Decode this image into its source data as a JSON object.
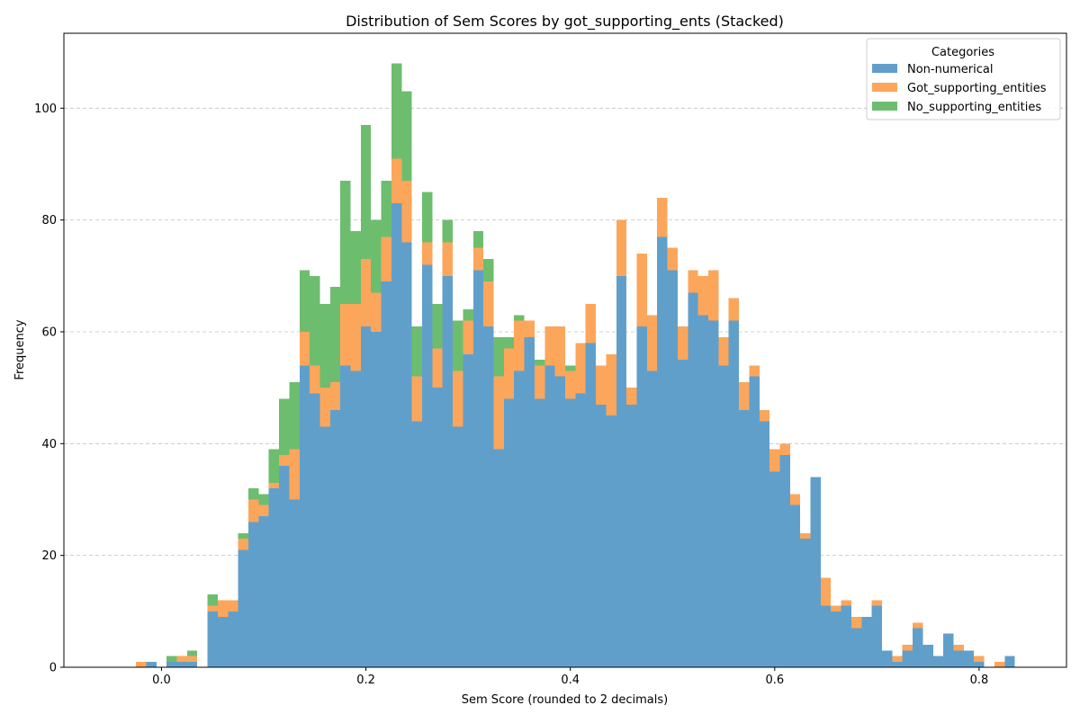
{
  "chart_data": {
    "type": "bar",
    "stacked": true,
    "title": "Distribution of Sem Scores by got_supporting_ents (Stacked)",
    "xlabel": "Sem Score (rounded to 2 decimals)",
    "ylabel": "Frequency",
    "xlim": [
      -0.0955,
      0.8855
    ],
    "ylim": [
      0,
      113.4
    ],
    "xticks": [
      0.0,
      0.2,
      0.4,
      0.6,
      0.8
    ],
    "xtick_labels": [
      "0.0",
      "0.2",
      "0.4",
      "0.6",
      "0.8"
    ],
    "yticks": [
      0,
      20,
      40,
      60,
      80,
      100
    ],
    "ytick_labels": [
      "0",
      "20",
      "40",
      "60",
      "80",
      "100"
    ],
    "grid": "y-dashed",
    "bin_width": 0.01,
    "legend": {
      "title": "Categories",
      "placement": "top-right"
    },
    "x": [
      -0.02,
      -0.01,
      0.0,
      0.01,
      0.02,
      0.03,
      0.04,
      0.05,
      0.06,
      0.07,
      0.08,
      0.09,
      0.1,
      0.11,
      0.12,
      0.13,
      0.14,
      0.15,
      0.16,
      0.17,
      0.18,
      0.19,
      0.2,
      0.21,
      0.22,
      0.23,
      0.24,
      0.25,
      0.26,
      0.27,
      0.28,
      0.29,
      0.3,
      0.31,
      0.32,
      0.33,
      0.34,
      0.35,
      0.36,
      0.37,
      0.38,
      0.39,
      0.4,
      0.41,
      0.42,
      0.43,
      0.44,
      0.45,
      0.46,
      0.47,
      0.48,
      0.49,
      0.5,
      0.51,
      0.52,
      0.53,
      0.54,
      0.55,
      0.56,
      0.57,
      0.58,
      0.59,
      0.6,
      0.61,
      0.62,
      0.63,
      0.64,
      0.65,
      0.66,
      0.67,
      0.68,
      0.69,
      0.7,
      0.71,
      0.72,
      0.73,
      0.74,
      0.75,
      0.76,
      0.77,
      0.78,
      0.79,
      0.8,
      0.81,
      0.82,
      0.83
    ],
    "series": [
      {
        "name": "Non-numerical",
        "color": "#619fcb",
        "values": [
          0,
          1,
          0,
          1,
          1,
          1,
          0,
          10,
          9,
          10,
          21,
          26,
          27,
          32,
          36,
          30,
          54,
          49,
          43,
          46,
          54,
          53,
          61,
          60,
          69,
          83,
          76,
          44,
          72,
          50,
          70,
          43,
          56,
          71,
          61,
          39,
          48,
          53,
          59,
          48,
          54,
          52,
          48,
          49,
          58,
          47,
          45,
          70,
          47,
          61,
          53,
          77,
          71,
          55,
          67,
          63,
          62,
          54,
          62,
          46,
          52,
          44,
          35,
          38,
          29,
          23,
          34,
          11,
          10,
          11,
          7,
          9,
          11,
          3,
          1,
          3,
          7,
          4,
          2,
          6,
          3,
          3,
          1,
          0,
          0,
          2
        ]
      },
      {
        "name": "Got_supporting_entities",
        "color": "#fca65b",
        "values": [
          1,
          0,
          0,
          0,
          1,
          1,
          0,
          1,
          3,
          2,
          2,
          4,
          2,
          1,
          2,
          9,
          6,
          5,
          7,
          5,
          11,
          12,
          12,
          7,
          8,
          8,
          11,
          8,
          4,
          7,
          6,
          10,
          6,
          4,
          8,
          13,
          9,
          9,
          3,
          6,
          7,
          9,
          5,
          9,
          7,
          7,
          11,
          10,
          3,
          13,
          10,
          7,
          4,
          6,
          4,
          7,
          9,
          5,
          4,
          5,
          2,
          2,
          4,
          2,
          2,
          1,
          0,
          5,
          1,
          1,
          2,
          0,
          1,
          0,
          1,
          1,
          1,
          0,
          0,
          0,
          1,
          0,
          1,
          0,
          1,
          0
        ]
      },
      {
        "name": "No_supporting_entities",
        "color": "#6dbd6f",
        "values": [
          0,
          0,
          0,
          1,
          0,
          1,
          0,
          2,
          0,
          0,
          1,
          2,
          2,
          6,
          10,
          12,
          11,
          16,
          15,
          17,
          22,
          13,
          24,
          13,
          10,
          17,
          16,
          9,
          9,
          8,
          4,
          9,
          2,
          3,
          4,
          7,
          2,
          1,
          0,
          1,
          0,
          0,
          1,
          0,
          0,
          0,
          0,
          0,
          0,
          0,
          0,
          0,
          0,
          0,
          0,
          0,
          0,
          0,
          0,
          0,
          0,
          0,
          0,
          0,
          0,
          0,
          0,
          0,
          0,
          0,
          0,
          0,
          0,
          0,
          0,
          0,
          0,
          0,
          0,
          0,
          0,
          0,
          0,
          0,
          0,
          0
        ]
      }
    ]
  }
}
